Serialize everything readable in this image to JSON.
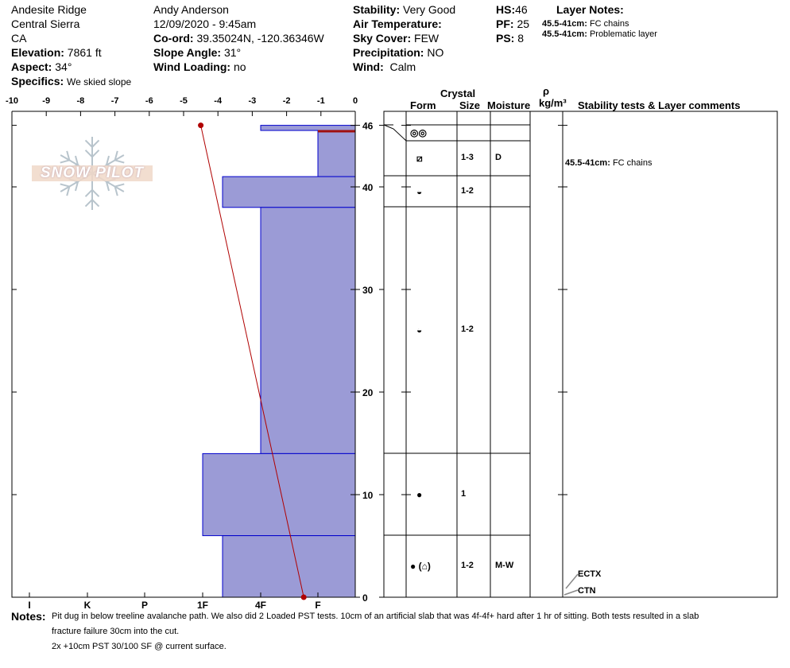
{
  "header": {
    "location": "Andesite Ridge",
    "range": "Central Sierra",
    "state": "CA",
    "elevation_label": "Elevation:",
    "elevation": "7861 ft",
    "aspect_label": "Aspect:",
    "aspect": "34°",
    "specifics_label": "Specifics:",
    "specifics": "We skied slope",
    "observer": "Andy Anderson",
    "datetime": "12/09/2020 - 9:45am",
    "coord_label": "Co-ord:",
    "coord": "39.35024N, -120.36346W",
    "slope_label": "Slope Angle:",
    "slope": "31°",
    "wind_loading_label": "Wind Loading:",
    "wind_loading": "no",
    "stability_label": "Stability:",
    "stability": "Very Good",
    "air_temp_label": "Air Temperature:",
    "air_temp": "",
    "sky_label": "Sky Cover:",
    "sky": "FEW",
    "precip_label": "Precipitation:",
    "precip": "NO",
    "wind_label": "Wind:",
    "wind": "Calm",
    "hs_label": "HS:",
    "hs": "46",
    "pf_label": "PF:",
    "pf": "25",
    "ps_label": "PS:",
    "ps": "8",
    "layer_notes_title": "Layer Notes:",
    "layer_notes": [
      {
        "range": "45.5-41cm:",
        "text": "FC chains"
      },
      {
        "range": "45.5-41cm:",
        "text": "Problematic layer"
      }
    ]
  },
  "logo": "SNOW PILOT",
  "graph": {
    "temp_ticks": [
      "-10",
      "-9",
      "-8",
      "-7",
      "-6",
      "-5",
      "-4",
      "-3",
      "-2",
      "-1",
      "0"
    ],
    "height_ticks": [
      "46",
      "40",
      "30",
      "20",
      "10",
      "0"
    ],
    "hardness_ticks": [
      "I",
      "K",
      "P",
      "1F",
      "4F",
      "F"
    ],
    "layers": [
      {
        "top": 46,
        "bottom": 45.5,
        "hardness": "4F"
      },
      {
        "top": 45.5,
        "bottom": 41,
        "hardness": "F"
      },
      {
        "top": 41,
        "bottom": 38,
        "hardness": "4F+"
      },
      {
        "top": 38,
        "bottom": 14,
        "hardness": "4F"
      },
      {
        "top": 14,
        "bottom": 6,
        "hardness": "1F"
      },
      {
        "top": 6,
        "bottom": 0,
        "hardness": "4F+"
      }
    ],
    "layer_of_concern_cm": 45.5,
    "temperature_profile": [
      {
        "depth": 46,
        "temp": -4.5
      },
      {
        "depth": 0,
        "temp": -1.5
      }
    ],
    "colors": {
      "bar": "#9b9bd6",
      "bar_edge": "#0000cc",
      "temp": "#b00000"
    }
  },
  "table": {
    "crystal_header": "Crystal",
    "form_header": "Form",
    "size_header": "Size",
    "moisture_header": "Moisture",
    "density_symbol": "ρ",
    "density_unit": "kg/m³",
    "comments_header": "Stability tests & Layer comments",
    "rows": [
      {
        "form": "",
        "size": "",
        "moisture": ""
      },
      {
        "form": "◎◎",
        "size": "",
        "moisture": ""
      },
      {
        "form": "⧄",
        "size": "1-3",
        "moisture": "D"
      },
      {
        "form": "◒",
        "size": "1-2",
        "moisture": ""
      },
      {
        "form": "◒",
        "size": "1-2",
        "moisture": ""
      },
      {
        "form": "●",
        "size": "1",
        "moisture": ""
      },
      {
        "form": "● (⌂)",
        "size": "1-2",
        "moisture": "M-W"
      }
    ],
    "comment_range": "45.5-41cm:",
    "comment_text": "FC chains",
    "tests": [
      "ECTX",
      "CTN"
    ]
  },
  "notes": {
    "label": "Notes:",
    "lines": [
      "Pit dug in below treeline avalanche path. We also did 2 Loaded PST tests. 10cm of an artificial slab that was 4f-4f+ hard after 1 hr of sitting. Both tests resulted in a slab",
      "fracture failure 30cm into the cut.",
      "2x +10cm PST 30/100 SF @ current surface."
    ]
  }
}
